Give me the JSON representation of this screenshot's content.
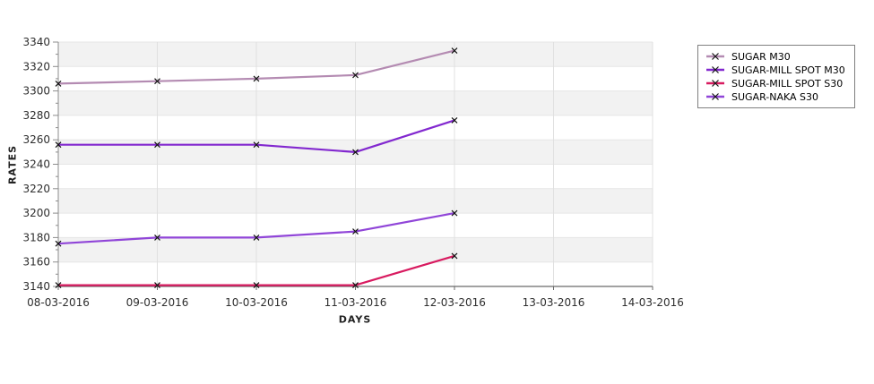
{
  "chart_data": {
    "type": "line",
    "title": "",
    "xlabel": "DAYS",
    "ylabel": "RATES",
    "x_ticks": [
      "08-03-2016",
      "09-03-2016",
      "10-03-2016",
      "11-03-2016",
      "12-03-2016",
      "13-03-2016",
      "14-03-2016"
    ],
    "y_ticks": [
      3140,
      3160,
      3180,
      3200,
      3220,
      3240,
      3260,
      3280,
      3300,
      3320,
      3340
    ],
    "ylim": [
      3140,
      3340
    ],
    "x": [
      "08-03-2016",
      "09-03-2016",
      "10-03-2016",
      "11-03-2016",
      "12-03-2016"
    ],
    "series": [
      {
        "name": "SUGAR M30",
        "color": "#b48bb2",
        "values": [
          3306,
          3308,
          3310,
          3313,
          3333
        ]
      },
      {
        "name": "SUGAR-MILL SPOT M30",
        "color": "#8228cf",
        "values": [
          3256,
          3256,
          3256,
          3250,
          3276
        ]
      },
      {
        "name": "SUGAR-MILL SPOT S30",
        "color": "#d81b60",
        "values": [
          3141,
          3141,
          3141,
          3141,
          3165
        ]
      },
      {
        "name": "SUGAR-NAKA S30",
        "color": "#9045d8",
        "values": [
          3175,
          3180,
          3180,
          3185,
          3200
        ]
      }
    ],
    "legend_position": "top-right",
    "grid": true,
    "marker": "x",
    "marker_color": "#141414",
    "band_gray": "#f2f2f2",
    "band_white": "#ffffff",
    "grid_color_v": "#e0e0e0",
    "grid_color_h": "#e6e6e6",
    "y_axis_color": "#8c8c8c",
    "x_axis_color": "#6a6a6a",
    "tick_label_color": "#2e2e2e"
  }
}
